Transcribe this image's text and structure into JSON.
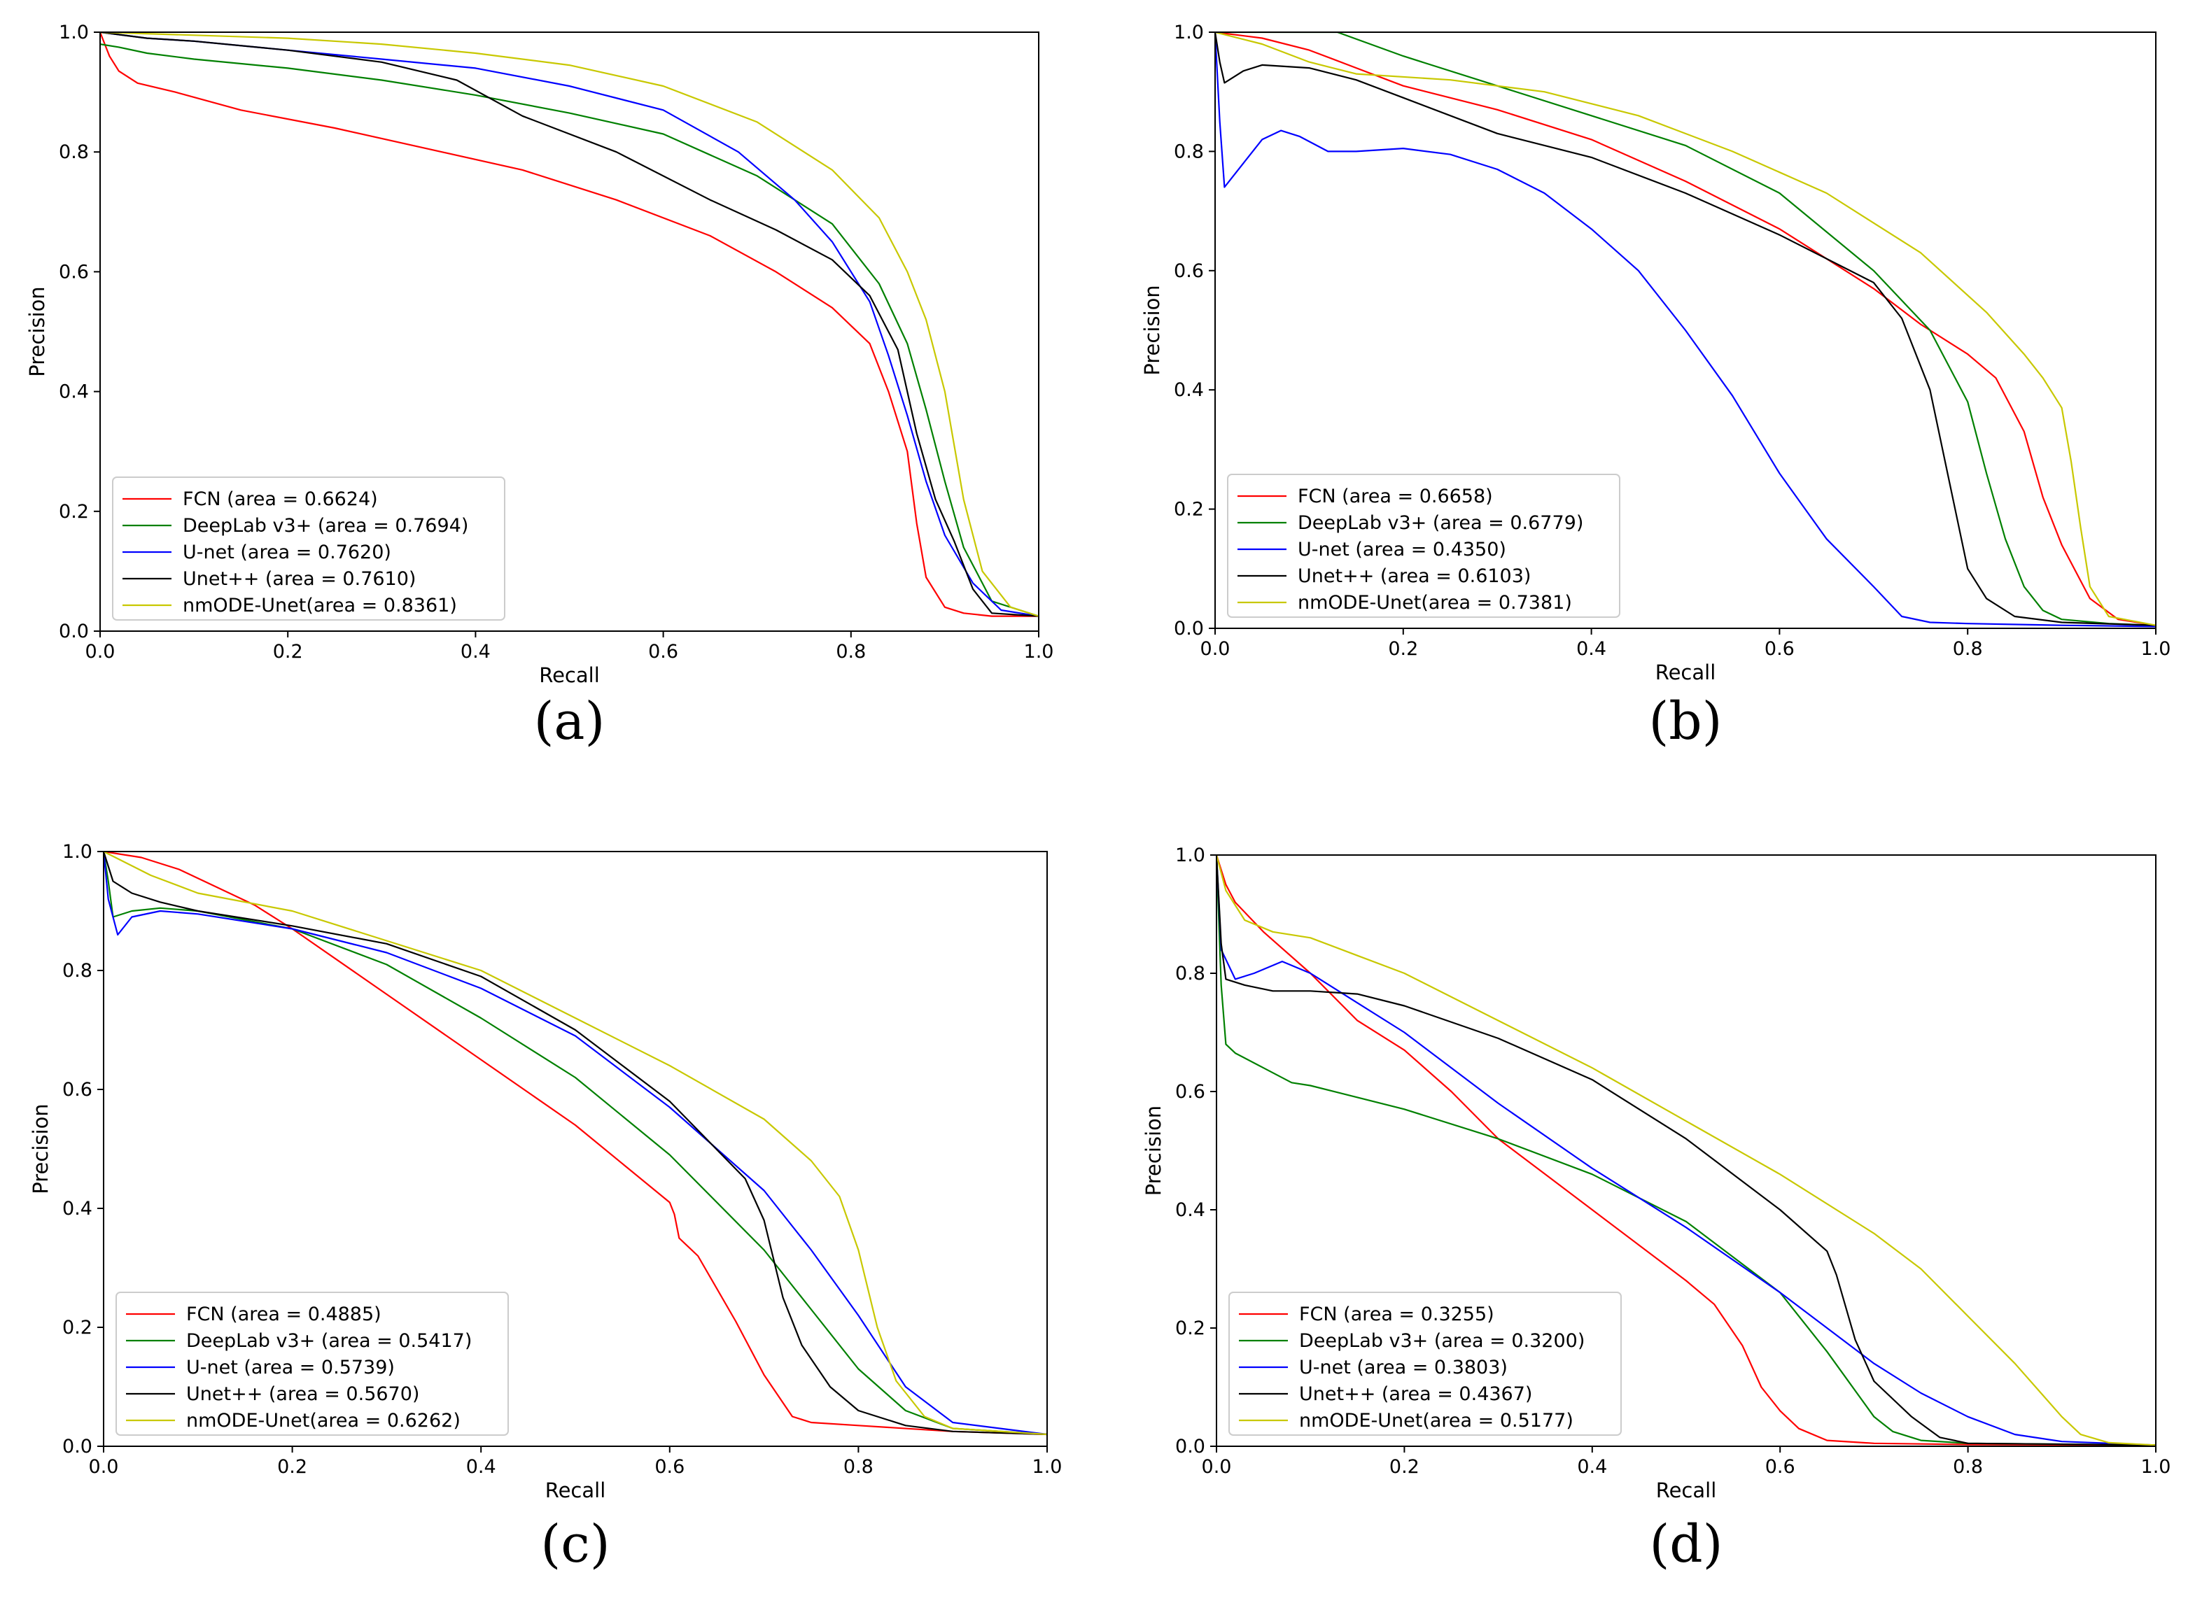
{
  "chart_data": [
    {
      "type": "line",
      "caption": "(a)",
      "xlabel": "Recall",
      "ylabel": "Precision",
      "xlim": [
        0.0,
        1.0
      ],
      "ylim": [
        0.0,
        1.0
      ],
      "xticks": [
        "0.0",
        "0.2",
        "0.4",
        "0.6",
        "0.8",
        "1.0"
      ],
      "yticks": [
        "0.0",
        "0.2",
        "0.4",
        "0.6",
        "0.8",
        "1.0"
      ],
      "grid": false,
      "legend_position": "lower-left",
      "series": [
        {
          "name": "FCN (area = 0.6624)",
          "color": "#ff0000",
          "x": [
            0,
            0.005,
            0.01,
            0.02,
            0.04,
            0.08,
            0.15,
            0.25,
            0.35,
            0.45,
            0.55,
            0.65,
            0.72,
            0.78,
            0.82,
            0.84,
            0.86,
            0.87,
            0.88,
            0.9,
            0.92,
            0.95,
            1.0
          ],
          "y": [
            1.0,
            0.98,
            0.96,
            0.935,
            0.915,
            0.9,
            0.87,
            0.84,
            0.805,
            0.77,
            0.72,
            0.66,
            0.6,
            0.54,
            0.48,
            0.4,
            0.3,
            0.18,
            0.09,
            0.04,
            0.03,
            0.025,
            0.025
          ]
        },
        {
          "name": "DeepLab v3+ (area = 0.7694)",
          "color": "#008000",
          "x": [
            0,
            0.02,
            0.05,
            0.1,
            0.2,
            0.3,
            0.4,
            0.5,
            0.6,
            0.7,
            0.78,
            0.83,
            0.86,
            0.88,
            0.9,
            0.92,
            0.95,
            1.0
          ],
          "y": [
            0.98,
            0.975,
            0.965,
            0.955,
            0.94,
            0.92,
            0.895,
            0.865,
            0.83,
            0.76,
            0.68,
            0.58,
            0.48,
            0.37,
            0.25,
            0.14,
            0.05,
            0.025
          ]
        },
        {
          "name": "U-net (area = 0.7620)",
          "color": "#0000ff",
          "x": [
            0,
            0.05,
            0.1,
            0.2,
            0.3,
            0.4,
            0.5,
            0.6,
            0.68,
            0.74,
            0.78,
            0.82,
            0.84,
            0.86,
            0.88,
            0.9,
            0.93,
            0.96,
            1.0
          ],
          "y": [
            1.0,
            0.99,
            0.985,
            0.97,
            0.955,
            0.94,
            0.91,
            0.87,
            0.8,
            0.72,
            0.65,
            0.55,
            0.46,
            0.36,
            0.25,
            0.16,
            0.08,
            0.035,
            0.025
          ]
        },
        {
          "name": "Unet++ (area = 0.7610)",
          "color": "#000000",
          "x": [
            0,
            0.05,
            0.1,
            0.2,
            0.3,
            0.38,
            0.45,
            0.55,
            0.65,
            0.72,
            0.78,
            0.82,
            0.85,
            0.87,
            0.89,
            0.91,
            0.93,
            0.95,
            1.0
          ],
          "y": [
            1.0,
            0.99,
            0.985,
            0.97,
            0.95,
            0.92,
            0.86,
            0.8,
            0.72,
            0.67,
            0.62,
            0.56,
            0.47,
            0.33,
            0.22,
            0.15,
            0.07,
            0.03,
            0.025
          ]
        },
        {
          "name": "nmODE-Unet(area = 0.8361)",
          "color": "#c8c800",
          "x": [
            0,
            0.1,
            0.2,
            0.3,
            0.4,
            0.5,
            0.6,
            0.7,
            0.78,
            0.83,
            0.86,
            0.88,
            0.9,
            0.92,
            0.94,
            0.97,
            1.0
          ],
          "y": [
            1.0,
            0.995,
            0.99,
            0.98,
            0.965,
            0.945,
            0.91,
            0.85,
            0.77,
            0.69,
            0.6,
            0.52,
            0.4,
            0.22,
            0.1,
            0.04,
            0.025
          ]
        }
      ]
    },
    {
      "type": "line",
      "caption": "(b)",
      "xlabel": "Recall",
      "ylabel": "Precision",
      "xlim": [
        0.0,
        1.0
      ],
      "ylim": [
        0.0,
        1.0
      ],
      "xticks": [
        "0.0",
        "0.2",
        "0.4",
        "0.6",
        "0.8",
        "1.0"
      ],
      "yticks": [
        "0.0",
        "0.2",
        "0.4",
        "0.6",
        "0.8",
        "1.0"
      ],
      "grid": false,
      "legend_position": "lower-left",
      "series": [
        {
          "name": "FCN (area = 0.6658)",
          "color": "#ff0000",
          "x": [
            0,
            0.05,
            0.1,
            0.15,
            0.2,
            0.3,
            0.4,
            0.5,
            0.6,
            0.7,
            0.75,
            0.8,
            0.83,
            0.86,
            0.88,
            0.9,
            0.93,
            0.96,
            1.0
          ],
          "y": [
            1.0,
            0.99,
            0.97,
            0.94,
            0.91,
            0.87,
            0.82,
            0.75,
            0.67,
            0.57,
            0.51,
            0.46,
            0.42,
            0.33,
            0.22,
            0.14,
            0.05,
            0.015,
            0.005
          ]
        },
        {
          "name": "DeepLab v3+ (area = 0.6779)",
          "color": "#008000",
          "x": [
            0,
            0.13,
            0.2,
            0.3,
            0.4,
            0.5,
            0.6,
            0.7,
            0.76,
            0.8,
            0.82,
            0.84,
            0.86,
            0.88,
            0.9,
            0.95,
            1.0
          ],
          "y": [
            1.0,
            1.0,
            0.96,
            0.91,
            0.86,
            0.81,
            0.73,
            0.6,
            0.5,
            0.38,
            0.26,
            0.15,
            0.07,
            0.03,
            0.015,
            0.008,
            0.005
          ]
        },
        {
          "name": "U-net (area = 0.4350)",
          "color": "#0000ff",
          "x": [
            0,
            0.005,
            0.01,
            0.03,
            0.05,
            0.07,
            0.09,
            0.12,
            0.15,
            0.2,
            0.25,
            0.3,
            0.35,
            0.4,
            0.45,
            0.5,
            0.55,
            0.6,
            0.65,
            0.7,
            0.73,
            0.76,
            0.8,
            0.9,
            1.0
          ],
          "y": [
            1.0,
            0.85,
            0.74,
            0.78,
            0.82,
            0.835,
            0.825,
            0.8,
            0.8,
            0.805,
            0.795,
            0.77,
            0.73,
            0.67,
            0.6,
            0.5,
            0.39,
            0.26,
            0.15,
            0.07,
            0.02,
            0.01,
            0.008,
            0.005,
            0.003
          ]
        },
        {
          "name": "Unet++ (area = 0.6103)",
          "color": "#000000",
          "x": [
            0,
            0.005,
            0.01,
            0.03,
            0.05,
            0.1,
            0.15,
            0.2,
            0.3,
            0.4,
            0.5,
            0.6,
            0.7,
            0.73,
            0.76,
            0.78,
            0.8,
            0.82,
            0.85,
            0.9,
            1.0
          ],
          "y": [
            1.0,
            0.95,
            0.915,
            0.935,
            0.945,
            0.94,
            0.92,
            0.89,
            0.83,
            0.79,
            0.73,
            0.66,
            0.58,
            0.52,
            0.4,
            0.25,
            0.1,
            0.05,
            0.02,
            0.01,
            0.005
          ]
        },
        {
          "name": "nmODE-Unet(area = 0.7381)",
          "color": "#c8c800",
          "x": [
            0,
            0.05,
            0.1,
            0.15,
            0.25,
            0.35,
            0.45,
            0.55,
            0.65,
            0.75,
            0.82,
            0.86,
            0.88,
            0.9,
            0.91,
            0.92,
            0.93,
            0.95,
            1.0
          ],
          "y": [
            1.0,
            0.98,
            0.95,
            0.93,
            0.92,
            0.9,
            0.86,
            0.8,
            0.73,
            0.63,
            0.53,
            0.46,
            0.42,
            0.37,
            0.28,
            0.17,
            0.07,
            0.02,
            0.005
          ]
        }
      ]
    },
    {
      "type": "line",
      "caption": "(c)",
      "xlabel": "Recall",
      "ylabel": "Precision",
      "xlim": [
        0.0,
        1.0
      ],
      "ylim": [
        0.0,
        1.0
      ],
      "xticks": [
        "0.0",
        "0.2",
        "0.4",
        "0.6",
        "0.8",
        "1.0"
      ],
      "yticks": [
        "0.0",
        "0.2",
        "0.4",
        "0.6",
        "0.8",
        "1.0"
      ],
      "grid": false,
      "legend_position": "lower-left",
      "series": [
        {
          "name": "FCN (area = 0.4885)",
          "color": "#ff0000",
          "x": [
            0,
            0.04,
            0.08,
            0.12,
            0.16,
            0.2,
            0.3,
            0.4,
            0.5,
            0.6,
            0.605,
            0.61,
            0.63,
            0.67,
            0.7,
            0.73,
            0.75,
            0.8,
            0.9,
            1.0
          ],
          "y": [
            1.0,
            0.99,
            0.97,
            0.94,
            0.91,
            0.87,
            0.76,
            0.65,
            0.54,
            0.41,
            0.39,
            0.35,
            0.32,
            0.21,
            0.12,
            0.05,
            0.04,
            0.035,
            0.025,
            0.02
          ]
        },
        {
          "name": "DeepLab v3+ (area = 0.5417)",
          "color": "#008000",
          "x": [
            0,
            0.005,
            0.01,
            0.03,
            0.06,
            0.1,
            0.2,
            0.3,
            0.4,
            0.5,
            0.6,
            0.7,
            0.75,
            0.8,
            0.85,
            0.9,
            1.0
          ],
          "y": [
            1.0,
            0.95,
            0.89,
            0.9,
            0.905,
            0.9,
            0.87,
            0.81,
            0.72,
            0.62,
            0.49,
            0.33,
            0.23,
            0.13,
            0.06,
            0.03,
            0.02
          ]
        },
        {
          "name": "U-net (area = 0.5739)",
          "color": "#0000ff",
          "x": [
            0,
            0.005,
            0.015,
            0.03,
            0.06,
            0.1,
            0.2,
            0.3,
            0.4,
            0.5,
            0.6,
            0.7,
            0.75,
            0.8,
            0.85,
            0.9,
            1.0
          ],
          "y": [
            1.0,
            0.92,
            0.86,
            0.89,
            0.9,
            0.895,
            0.87,
            0.83,
            0.77,
            0.69,
            0.57,
            0.43,
            0.33,
            0.22,
            0.1,
            0.04,
            0.02
          ]
        },
        {
          "name": "Unet++ (area = 0.5670)",
          "color": "#000000",
          "x": [
            0,
            0.01,
            0.03,
            0.06,
            0.1,
            0.2,
            0.3,
            0.4,
            0.5,
            0.6,
            0.68,
            0.7,
            0.72,
            0.74,
            0.77,
            0.8,
            0.85,
            0.9,
            1.0
          ],
          "y": [
            1.0,
            0.95,
            0.93,
            0.915,
            0.9,
            0.875,
            0.845,
            0.79,
            0.7,
            0.58,
            0.45,
            0.38,
            0.25,
            0.17,
            0.1,
            0.06,
            0.035,
            0.025,
            0.02
          ]
        },
        {
          "name": "nmODE-Unet(area = 0.6262)",
          "color": "#c8c800",
          "x": [
            0,
            0.05,
            0.1,
            0.2,
            0.3,
            0.4,
            0.5,
            0.6,
            0.7,
            0.75,
            0.78,
            0.8,
            0.82,
            0.84,
            0.87,
            0.9,
            1.0
          ],
          "y": [
            1.0,
            0.96,
            0.93,
            0.9,
            0.85,
            0.8,
            0.72,
            0.64,
            0.55,
            0.48,
            0.42,
            0.33,
            0.2,
            0.11,
            0.05,
            0.03,
            0.02
          ]
        }
      ]
    },
    {
      "type": "line",
      "caption": "(d)",
      "xlabel": "Recall",
      "ylabel": "Precision",
      "xlim": [
        0.0,
        1.0
      ],
      "ylim": [
        0.0,
        1.0
      ],
      "xticks": [
        "0.0",
        "0.2",
        "0.4",
        "0.6",
        "0.8",
        "1.0"
      ],
      "yticks": [
        "0.0",
        "0.2",
        "0.4",
        "0.6",
        "0.8",
        "1.0"
      ],
      "grid": false,
      "legend_position": "lower-left",
      "series": [
        {
          "name": "FCN (area = 0.3255)",
          "color": "#ff0000",
          "x": [
            0,
            0.01,
            0.02,
            0.05,
            0.1,
            0.15,
            0.2,
            0.25,
            0.3,
            0.35,
            0.4,
            0.45,
            0.5,
            0.53,
            0.56,
            0.58,
            0.6,
            0.62,
            0.65,
            0.7,
            0.8,
            1.0
          ],
          "y": [
            1.0,
            0.95,
            0.92,
            0.87,
            0.8,
            0.72,
            0.67,
            0.6,
            0.52,
            0.46,
            0.4,
            0.34,
            0.28,
            0.24,
            0.17,
            0.1,
            0.06,
            0.03,
            0.01,
            0.005,
            0.003,
            0.002
          ]
        },
        {
          "name": "DeepLab v3+ (area = 0.3200)",
          "color": "#008000",
          "x": [
            0,
            0.005,
            0.01,
            0.02,
            0.05,
            0.08,
            0.1,
            0.2,
            0.3,
            0.4,
            0.5,
            0.6,
            0.65,
            0.7,
            0.72,
            0.75,
            0.8,
            1.0
          ],
          "y": [
            1.0,
            0.78,
            0.68,
            0.665,
            0.64,
            0.615,
            0.61,
            0.57,
            0.52,
            0.46,
            0.38,
            0.26,
            0.16,
            0.05,
            0.025,
            0.01,
            0.005,
            0.002
          ]
        },
        {
          "name": "U-net (area = 0.3803)",
          "color": "#0000ff",
          "x": [
            0,
            0.005,
            0.02,
            0.04,
            0.07,
            0.1,
            0.15,
            0.2,
            0.3,
            0.4,
            0.5,
            0.6,
            0.65,
            0.7,
            0.75,
            0.8,
            0.85,
            0.9,
            1.0
          ],
          "y": [
            1.0,
            0.84,
            0.79,
            0.8,
            0.82,
            0.8,
            0.75,
            0.7,
            0.58,
            0.47,
            0.37,
            0.26,
            0.2,
            0.14,
            0.09,
            0.05,
            0.02,
            0.008,
            0.002
          ]
        },
        {
          "name": "Unet++ (area = 0.4367)",
          "color": "#000000",
          "x": [
            0,
            0.005,
            0.01,
            0.03,
            0.06,
            0.1,
            0.15,
            0.2,
            0.3,
            0.4,
            0.5,
            0.6,
            0.65,
            0.66,
            0.68,
            0.7,
            0.74,
            0.77,
            0.8,
            1.0
          ],
          "y": [
            1.0,
            0.85,
            0.79,
            0.78,
            0.77,
            0.77,
            0.765,
            0.745,
            0.69,
            0.62,
            0.52,
            0.4,
            0.33,
            0.29,
            0.18,
            0.11,
            0.05,
            0.015,
            0.005,
            0.002
          ]
        },
        {
          "name": "nmODE-Unet(area = 0.5177)",
          "color": "#c8c800",
          "x": [
            0,
            0.01,
            0.03,
            0.06,
            0.1,
            0.15,
            0.2,
            0.3,
            0.4,
            0.5,
            0.6,
            0.7,
            0.75,
            0.8,
            0.85,
            0.9,
            0.92,
            0.95,
            1.0
          ],
          "y": [
            1.0,
            0.94,
            0.89,
            0.87,
            0.86,
            0.83,
            0.8,
            0.72,
            0.64,
            0.55,
            0.46,
            0.36,
            0.3,
            0.22,
            0.14,
            0.05,
            0.02,
            0.006,
            0.002
          ]
        }
      ]
    }
  ]
}
